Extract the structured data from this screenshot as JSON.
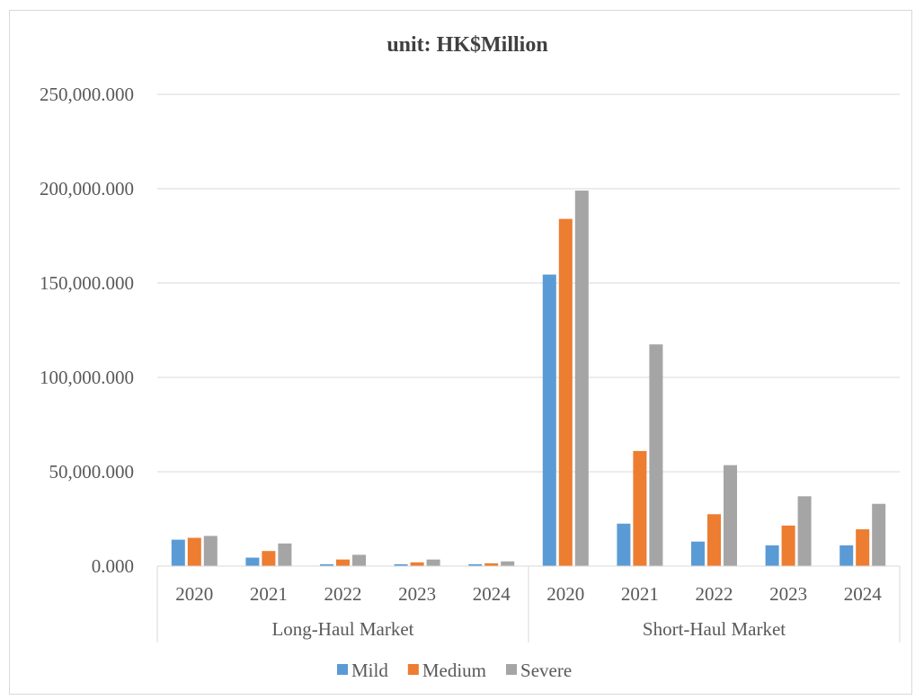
{
  "chart_data": {
    "type": "bar",
    "title": "unit:  HK$Million",
    "xlabel": "",
    "ylabel": "",
    "ylim": [
      0,
      250000
    ],
    "y_ticks": [
      {
        "value": 0,
        "label": "0.000"
      },
      {
        "value": 50000,
        "label": "50,000.000"
      },
      {
        "value": 100000,
        "label": "100,000.000"
      },
      {
        "value": 150000,
        "label": "150,000.000"
      },
      {
        "value": 200000,
        "label": "200,000.000"
      },
      {
        "value": 250000,
        "label": "250,000.000"
      }
    ],
    "grid": true,
    "legend_position": "bottom",
    "groups": [
      {
        "label": "Long-Haul Market",
        "categories": [
          "2020",
          "2021",
          "2022",
          "2023",
          "2024"
        ]
      },
      {
        "label": "Short-Haul Market",
        "categories": [
          "2020",
          "2021",
          "2022",
          "2023",
          "2024"
        ]
      }
    ],
    "series": [
      {
        "name": "Mild",
        "color": "#5b9bd5",
        "values": [
          14000,
          4500,
          1000,
          1000,
          1000,
          154500,
          22500,
          13000,
          11000,
          11000
        ]
      },
      {
        "name": "Medium",
        "color": "#ed7d31",
        "values": [
          15000,
          8000,
          3500,
          2000,
          1500,
          184000,
          61000,
          27500,
          21500,
          19500
        ]
      },
      {
        "name": "Severe",
        "color": "#a5a5a5",
        "values": [
          16000,
          12000,
          6000,
          3500,
          2500,
          199000,
          117500,
          53500,
          37000,
          33000
        ]
      }
    ]
  }
}
